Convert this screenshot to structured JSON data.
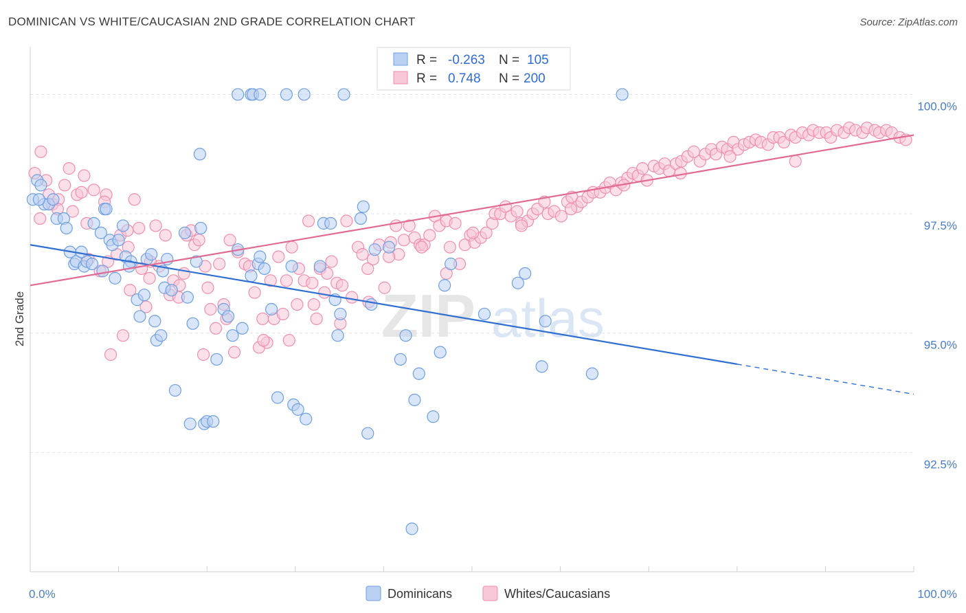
{
  "title": "DOMINICAN VS WHITE/CAUCASIAN 2ND GRADE CORRELATION CHART",
  "source": "Source: ZipAtlas.com",
  "watermark": "ZIPatlas",
  "chart_data": {
    "type": "scatter",
    "ylabel": "2nd Grade",
    "xlim": [
      0,
      100
    ],
    "ylim": [
      90.0,
      101.0
    ],
    "x_tick_labels": [
      "0.0%",
      "100.0%"
    ],
    "y_ticks": [
      {
        "value": 100.0,
        "label": "100.0%"
      },
      {
        "value": 97.5,
        "label": "97.5%"
      },
      {
        "value": 95.0,
        "label": "95.0%"
      },
      {
        "value": 92.5,
        "label": "92.5%"
      }
    ],
    "legend": {
      "rows": [
        {
          "r_label": "R =",
          "r_value": "-0.263",
          "n_label": "N =",
          "n_value": "105"
        },
        {
          "r_label": "R =",
          "r_value": "0.748",
          "n_label": "N =",
          "n_value": "200"
        }
      ]
    },
    "series": [
      {
        "name": "Dominicans",
        "color": "#6f9fe0",
        "fill": "#b9d0f2",
        "line_color": "#2f6fd1",
        "trend": {
          "x0": 0,
          "y0": 96.85,
          "x1": 80,
          "y1": 94.35,
          "dash_to_x": 100,
          "dash_to_y": 93.72
        },
        "points": [
          [
            0.3,
            97.8
          ],
          [
            0.8,
            98.2
          ],
          [
            1.2,
            98.1
          ],
          [
            1.6,
            97.7
          ],
          [
            2.1,
            97.7
          ],
          [
            2.6,
            97.8
          ],
          [
            3,
            97.4
          ],
          [
            3.8,
            97.4
          ],
          [
            4.1,
            97.2
          ],
          [
            4.5,
            96.7
          ],
          [
            5,
            96.45
          ],
          [
            5.2,
            96.5
          ],
          [
            6.1,
            96.4
          ],
          [
            6.4,
            96.5
          ],
          [
            5.8,
            96.7
          ],
          [
            7,
            96.45
          ],
          [
            7.2,
            97.3
          ],
          [
            8,
            97.1
          ],
          [
            8.4,
            97.6
          ],
          [
            8.6,
            97.6
          ],
          [
            8.2,
            96.3
          ],
          [
            9,
            96.95
          ],
          [
            9.3,
            96.85
          ],
          [
            9.6,
            96.15
          ],
          [
            10,
            96.95
          ],
          [
            10.5,
            97.25
          ],
          [
            10.8,
            96.6
          ],
          [
            11.4,
            96.5
          ],
          [
            11.2,
            96.4
          ],
          [
            12.1,
            95.7
          ],
          [
            12.4,
            95.35
          ],
          [
            12.9,
            95.8
          ],
          [
            13.2,
            96.55
          ],
          [
            13.7,
            96.65
          ],
          [
            14.1,
            95.25
          ],
          [
            14.3,
            94.85
          ],
          [
            14.8,
            94.95
          ],
          [
            15,
            96.3
          ],
          [
            15.2,
            95.95
          ],
          [
            16,
            95.9
          ],
          [
            15.5,
            96.55
          ],
          [
            16.4,
            93.8
          ],
          [
            17.5,
            97.1
          ],
          [
            17.8,
            95.75
          ],
          [
            18.1,
            93.1
          ],
          [
            18.4,
            95.2
          ],
          [
            18.8,
            96.5
          ],
          [
            19.3,
            97.2
          ],
          [
            19.7,
            93.1
          ],
          [
            19.2,
            98.75
          ],
          [
            20,
            93.15
          ],
          [
            20.7,
            93.15
          ],
          [
            21.1,
            94.45
          ],
          [
            21.9,
            95.5
          ],
          [
            22.4,
            95.35
          ],
          [
            22.9,
            94.95
          ],
          [
            23.5,
            96.75
          ],
          [
            24,
            95.1
          ],
          [
            25,
            96.2
          ],
          [
            25.8,
            96.45
          ],
          [
            26,
            96.6
          ],
          [
            26.5,
            96.35
          ],
          [
            27.3,
            95.5
          ],
          [
            28,
            93.65
          ],
          [
            29.6,
            96.4
          ],
          [
            29.8,
            93.5
          ],
          [
            30.3,
            93.4
          ],
          [
            31.2,
            93.2
          ],
          [
            32.8,
            96.4
          ],
          [
            33.2,
            97.3
          ],
          [
            34,
            97.3
          ],
          [
            34.5,
            95.7
          ],
          [
            34.8,
            94.95
          ],
          [
            35.1,
            95.4
          ],
          [
            37.7,
            97.65
          ],
          [
            37.4,
            97.4
          ],
          [
            38.6,
            95.6
          ],
          [
            38.2,
            92.9
          ],
          [
            39,
            96.75
          ],
          [
            40.6,
            96.8
          ],
          [
            41.9,
            94.45
          ],
          [
            42.5,
            94.95
          ],
          [
            43.2,
            90.9
          ],
          [
            43.5,
            93.6
          ],
          [
            44,
            94.15
          ],
          [
            45.6,
            93.25
          ],
          [
            46.4,
            94.6
          ],
          [
            46.9,
            96.0
          ],
          [
            47.6,
            96.45
          ],
          [
            51.4,
            95.4
          ],
          [
            55.2,
            96.05
          ],
          [
            56,
            96.25
          ],
          [
            57.9,
            94.3
          ],
          [
            58.3,
            95.25
          ],
          [
            63.6,
            94.15
          ],
          [
            1,
            97.8
          ],
          [
            25,
            100
          ],
          [
            23.5,
            100
          ],
          [
            25.2,
            100
          ],
          [
            26,
            100
          ],
          [
            29,
            100
          ],
          [
            31,
            100
          ],
          [
            35.5,
            100
          ],
          [
            67,
            100
          ]
        ]
      },
      {
        "name": "Whites/Caucasians",
        "color": "#ee8fae",
        "fill": "#f7c7d7",
        "line_color": "#e06a93",
        "trend": {
          "x0": 0,
          "y0": 96.0,
          "x1": 100,
          "y1": 99.15
        },
        "points": [
          [
            0.5,
            98.35
          ],
          [
            1.2,
            98.8
          ],
          [
            1.8,
            98.2
          ],
          [
            2.1,
            97.9
          ],
          [
            2.5,
            97.7
          ],
          [
            3.2,
            97.8
          ],
          [
            3.9,
            98.1
          ],
          [
            4.4,
            98.45
          ],
          [
            4.8,
            97.55
          ],
          [
            5.3,
            97.9
          ],
          [
            5.8,
            97.95
          ],
          [
            6.1,
            98.3
          ],
          [
            6.6,
            96.55
          ],
          [
            7.2,
            98.0
          ],
          [
            7.9,
            96.3
          ],
          [
            8.6,
            97.9
          ],
          [
            8.4,
            97.75
          ],
          [
            9.1,
            94.55
          ],
          [
            9.8,
            96.65
          ],
          [
            10.2,
            97.05
          ],
          [
            10.5,
            94.95
          ],
          [
            11,
            97.15
          ],
          [
            11.3,
            95.9
          ],
          [
            11.8,
            97.8
          ],
          [
            12.3,
            97.2
          ],
          [
            12.6,
            96.35
          ],
          [
            13.1,
            95.55
          ],
          [
            13.5,
            96.15
          ],
          [
            14.2,
            97.25
          ],
          [
            14.6,
            96.4
          ],
          [
            15.3,
            97.05
          ],
          [
            15.8,
            95.8
          ],
          [
            16.2,
            96.1
          ],
          [
            16.9,
            96.0
          ],
          [
            17.4,
            96.25
          ],
          [
            17.7,
            97.05
          ],
          [
            18.2,
            97.15
          ],
          [
            18.6,
            96.85
          ],
          [
            19.1,
            96.95
          ],
          [
            19.6,
            94.55
          ],
          [
            20.1,
            95.95
          ],
          [
            20.4,
            95.5
          ],
          [
            21,
            95.1
          ],
          [
            21.4,
            96.45
          ],
          [
            21.9,
            95.6
          ],
          [
            22.6,
            96.95
          ],
          [
            23.1,
            94.6
          ],
          [
            23.5,
            96.7
          ],
          [
            24.3,
            96.45
          ],
          [
            24.8,
            96.4
          ],
          [
            25.4,
            95.85
          ],
          [
            25.9,
            94.7
          ],
          [
            26.3,
            95.3
          ],
          [
            26.8,
            94.8
          ],
          [
            27.2,
            96.1
          ],
          [
            27.6,
            95.3
          ],
          [
            28.1,
            96.6
          ],
          [
            28.6,
            95.4
          ],
          [
            29,
            96.1
          ],
          [
            29.6,
            96.8
          ],
          [
            30.2,
            95.6
          ],
          [
            30.4,
            96.35
          ],
          [
            31,
            96.1
          ],
          [
            31.5,
            97.35
          ],
          [
            31.9,
            96.05
          ],
          [
            32.4,
            95.3
          ],
          [
            32.8,
            96.35
          ],
          [
            33.3,
            95.85
          ],
          [
            33.6,
            96.25
          ],
          [
            34.1,
            96.5
          ],
          [
            34.7,
            96.05
          ],
          [
            35.3,
            96.0
          ],
          [
            35.8,
            97.35
          ],
          [
            36.4,
            95.75
          ],
          [
            37.1,
            96.8
          ],
          [
            37.6,
            96.65
          ],
          [
            38.2,
            96.35
          ],
          [
            38.8,
            96.55
          ],
          [
            39.5,
            96.85
          ],
          [
            40.1,
            95.95
          ],
          [
            40.8,
            96.9
          ],
          [
            41.4,
            97.25
          ],
          [
            41.7,
            96.65
          ],
          [
            42.3,
            96.95
          ],
          [
            42.9,
            97.25
          ],
          [
            43.5,
            97.0
          ],
          [
            44.1,
            96.85
          ],
          [
            44.6,
            96.85
          ],
          [
            45.2,
            97.05
          ],
          [
            45.8,
            97.45
          ],
          [
            46.3,
            97.25
          ],
          [
            47.1,
            97.35
          ],
          [
            47.5,
            96.8
          ],
          [
            48.1,
            97.3
          ],
          [
            48.6,
            96.45
          ],
          [
            49.2,
            96.85
          ],
          [
            49.8,
            97.05
          ],
          [
            50.3,
            96.9
          ],
          [
            51,
            97.0
          ],
          [
            51.6,
            97.1
          ],
          [
            52.3,
            97.3
          ],
          [
            52.6,
            97.5
          ],
          [
            53.2,
            97.5
          ],
          [
            53.8,
            97.65
          ],
          [
            54.4,
            97.45
          ],
          [
            55.1,
            97.55
          ],
          [
            55.6,
            97.3
          ],
          [
            56.3,
            97.35
          ],
          [
            56.9,
            97.5
          ],
          [
            57.4,
            97.6
          ],
          [
            58.2,
            97.75
          ],
          [
            58.6,
            97.5
          ],
          [
            59.3,
            97.55
          ],
          [
            60.1,
            97.45
          ],
          [
            60.8,
            97.75
          ],
          [
            61.3,
            97.85
          ],
          [
            61.9,
            97.65
          ],
          [
            62.4,
            97.75
          ],
          [
            63.1,
            97.85
          ],
          [
            63.7,
            97.95
          ],
          [
            64.5,
            97.95
          ],
          [
            65.1,
            98.05
          ],
          [
            65.6,
            98.15
          ],
          [
            66.3,
            98.0
          ],
          [
            66.9,
            98.15
          ],
          [
            67.6,
            98.25
          ],
          [
            68.2,
            98.35
          ],
          [
            68.8,
            98.3
          ],
          [
            69.3,
            98.45
          ],
          [
            69.8,
            98.2
          ],
          [
            70.6,
            98.5
          ],
          [
            71.2,
            98.45
          ],
          [
            71.8,
            98.55
          ],
          [
            72.3,
            98.4
          ],
          [
            73.1,
            98.55
          ],
          [
            73.7,
            98.6
          ],
          [
            74.4,
            98.7
          ],
          [
            75.1,
            98.8
          ],
          [
            75.8,
            98.6
          ],
          [
            76.4,
            98.75
          ],
          [
            77.1,
            98.85
          ],
          [
            77.6,
            98.75
          ],
          [
            78.3,
            98.9
          ],
          [
            78.9,
            98.85
          ],
          [
            79.6,
            99.0
          ],
          [
            80.1,
            98.85
          ],
          [
            80.8,
            98.95
          ],
          [
            81.4,
            99.0
          ],
          [
            82.1,
            99.05
          ],
          [
            82.7,
            99.0
          ],
          [
            83.5,
            98.95
          ],
          [
            84.1,
            99.1
          ],
          [
            84.8,
            99.1
          ],
          [
            85.3,
            99.0
          ],
          [
            86.1,
            99.15
          ],
          [
            86.6,
            99.1
          ],
          [
            87.4,
            99.2
          ],
          [
            88.1,
            99.15
          ],
          [
            88.6,
            99.25
          ],
          [
            89.3,
            99.2
          ],
          [
            90.1,
            99.2
          ],
          [
            90.6,
            99.1
          ],
          [
            91.3,
            99.25
          ],
          [
            92.1,
            99.2
          ],
          [
            92.7,
            99.3
          ],
          [
            93.4,
            99.25
          ],
          [
            94.2,
            99.2
          ],
          [
            94.7,
            99.3
          ],
          [
            95.6,
            99.25
          ],
          [
            96.1,
            99.2
          ],
          [
            96.9,
            99.25
          ],
          [
            97.5,
            99.2
          ],
          [
            98.4,
            99.1
          ],
          [
            99.1,
            99.05
          ],
          [
            86.6,
            98.6
          ],
          [
            79.2,
            98.7
          ],
          [
            73.6,
            98.35
          ],
          [
            67.2,
            98.1
          ],
          [
            61.2,
            97.6
          ],
          [
            55.6,
            97.25
          ],
          [
            50.1,
            97.1
          ],
          [
            47.1,
            96.25
          ],
          [
            44.3,
            96.8
          ],
          [
            40.6,
            96.6
          ],
          [
            38.3,
            95.65
          ],
          [
            35.1,
            95.2
          ],
          [
            32.1,
            95.6
          ],
          [
            29.3,
            94.85
          ],
          [
            26.4,
            94.85
          ],
          [
            22.2,
            95.3
          ],
          [
            19.8,
            96.4
          ],
          [
            16.8,
            95.75
          ],
          [
            13.6,
            96.5
          ],
          [
            11.1,
            96.8
          ],
          [
            8.8,
            96.5
          ],
          [
            6.4,
            97.3
          ],
          [
            3.1,
            97.6
          ],
          [
            1.1,
            97.4
          ]
        ]
      }
    ]
  },
  "bottom_legend": [
    "Dominicans",
    "Whites/Caucasians"
  ]
}
